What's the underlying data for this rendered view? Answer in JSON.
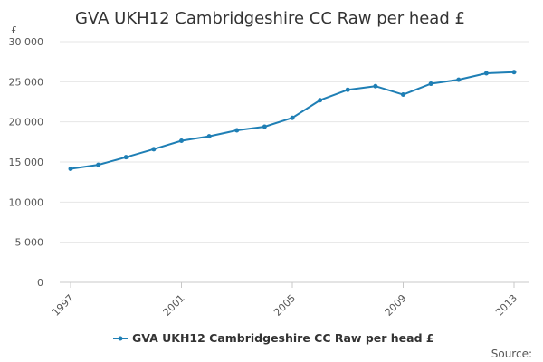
{
  "chart_data": {
    "type": "line",
    "title": "GVA UKH12 Cambridgeshire CC Raw per head £",
    "ylabel": "£",
    "xlabel": "",
    "ylim": [
      0,
      30000
    ],
    "yticks": [
      0,
      5000,
      10000,
      15000,
      20000,
      25000,
      30000
    ],
    "ytick_labels": [
      "0",
      "5 000",
      "10 000",
      "15 000",
      "20 000",
      "25 000",
      "30 000"
    ],
    "xlim": [
      1997,
      2013
    ],
    "xticks": [
      "1997",
      "2001",
      "2005",
      "2009",
      "2013"
    ],
    "grid": true,
    "legend_position": "bottom",
    "series": [
      {
        "name": "GVA UKH12 Cambridgeshire CC Raw per head £",
        "color": "#1f7fb5",
        "x": [
          1997,
          1998,
          1999,
          2000,
          2001,
          2002,
          2003,
          2004,
          2005,
          2006,
          2007,
          2008,
          2009,
          2010,
          2011,
          2012,
          2013
        ],
        "values": [
          14150,
          14650,
          15600,
          16600,
          17650,
          18200,
          18950,
          19400,
          20500,
          22700,
          24000,
          24450,
          23400,
          24750,
          25250,
          26050,
          26200
        ]
      }
    ],
    "source_label": "Source:"
  }
}
